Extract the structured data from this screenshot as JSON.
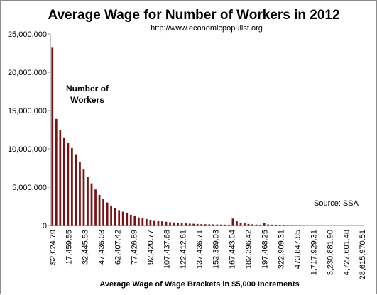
{
  "chart_data": {
    "type": "bar",
    "title": "Average Wage for Number of Workers  in 2012",
    "subtitle": "http://www.economicpopulist.org",
    "xlabel": "Average Wage of Wage Brackets in $5,000 Increments",
    "series_label_lines": [
      "Number of",
      "Workers"
    ],
    "source_note": "Source: SSA",
    "ylim": [
      0,
      25000000
    ],
    "yticks": [
      "0",
      "5,000,000",
      "10,000,000",
      "15,000,000",
      "20,000,000",
      "25,000,000"
    ],
    "grid": false,
    "bar_color": "#7b1113",
    "x_tick_labels": [
      "$2,024.79",
      "17,459.55",
      "32,445.53",
      "47,436.03",
      "62,407.42",
      "77,426.89",
      "92,420.77",
      "107,437.68",
      "122,412.61",
      "137,436.71",
      "152,389.03",
      "167,443.04",
      "182,396.42",
      "197,468.25",
      "322,909.31",
      "473,847.85",
      "1,717,929.31",
      "3,230,881.90",
      "4,727,601.48",
      "28,615,970.51"
    ],
    "values": [
      23300000,
      13900000,
      12400000,
      11500000,
      10800000,
      10100000,
      9300000,
      8300000,
      7300000,
      6300000,
      5500000,
      4700000,
      4000000,
      3500000,
      3000000,
      2600000,
      2300000,
      2000000,
      1800000,
      1600000,
      1400000,
      1200000,
      1050000,
      950000,
      850000,
      750000,
      680000,
      600000,
      540000,
      480000,
      430000,
      380000,
      340000,
      300000,
      270000,
      240000,
      220000,
      200000,
      180000,
      160000,
      150000,
      140000,
      130000,
      120000,
      110000,
      100000,
      900000,
      650000,
      380000,
      280000,
      200000,
      150000,
      120000,
      100000,
      300000,
      130000,
      110000,
      100000,
      90000,
      80000,
      75000,
      70000,
      65000,
      60000,
      55000,
      50000,
      45000,
      40000,
      38000,
      35000,
      32000,
      30000,
      28000,
      26000,
      25000,
      24000,
      23000,
      22000,
      21000,
      20000
    ]
  }
}
